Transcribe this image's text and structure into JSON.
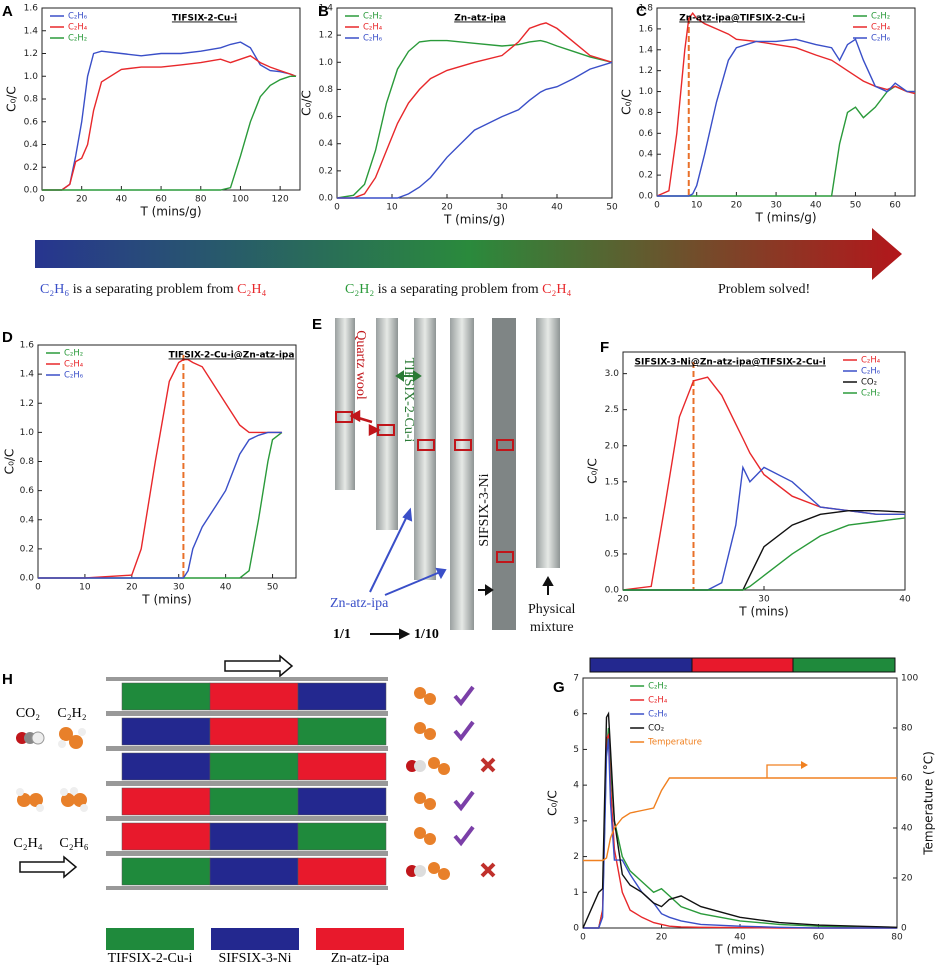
{
  "panel_labels": [
    "A",
    "B",
    "C",
    "D",
    "E",
    "F",
    "G",
    "H"
  ],
  "banner": {
    "caption_1": [
      "C₂H₆",
      "is a  separating problem from",
      "C₂H₄"
    ],
    "caption_2": [
      "C₂H₂",
      "is a separating problem from",
      "C₂H₄"
    ],
    "caption_3": "Problem solved!"
  },
  "panel_e": {
    "quartz": "Quartz wool",
    "tifsix": "TIFSIX-2-Cu-i",
    "sifsix": "SIFSIX-3-Ni",
    "zn": "Zn-atz-ipa",
    "physical": [
      "Physical",
      "mixture"
    ],
    "ratio_start": "1/1",
    "ratio_end": "1/10"
  },
  "panel_h": {
    "molecules": [
      "CO₂",
      "C₂H₂",
      "C₂H₄",
      "C₂H₆"
    ],
    "legend": [
      {
        "name": "TIFSIX-2-Cu-i",
        "color": "#1f8a3c"
      },
      {
        "name": "SIFSIX-3-Ni",
        "color": "#23288f"
      },
      {
        "name": "Zn-atz-ipa",
        "color": "#e8192c"
      }
    ]
  },
  "chart_data": [
    {
      "type": "line",
      "title": "TIFSIX-2-Cu-i",
      "xlabel": "T (mins/g)",
      "ylabel": "C₀/C",
      "legend": "upper left",
      "xlim": [
        0,
        130
      ],
      "xticks": [
        0,
        20,
        40,
        60,
        80,
        100,
        120
      ],
      "ylim": [
        0,
        1.6
      ],
      "yticks": [
        {
          "value": 0,
          "label": "0.0"
        },
        0.2,
        0.4,
        0.6,
        0.8,
        {
          "value": 1,
          "label": "1.0"
        },
        1.2,
        1.4,
        1.6
      ],
      "x": [
        0,
        10,
        14,
        17,
        20,
        23,
        26,
        30,
        40,
        50,
        60,
        70,
        80,
        90,
        95,
        100,
        105,
        110,
        115,
        120,
        125,
        128
      ],
      "series": [
        {
          "name": "C₂H₆",
          "color": "#3a4fc8",
          "values": [
            0,
            0,
            0.05,
            0.3,
            0.6,
            1.0,
            1.2,
            1.22,
            1.2,
            1.18,
            1.2,
            1.2,
            1.22,
            1.25,
            1.28,
            1.3,
            1.25,
            1.1,
            1.05,
            1.04,
            1.02,
            1.0
          ]
        },
        {
          "name": "C₂H₄",
          "color": "#e8282b",
          "values": [
            0,
            0,
            0.05,
            0.25,
            0.28,
            0.4,
            0.7,
            0.95,
            1.06,
            1.08,
            1.08,
            1.1,
            1.12,
            1.15,
            1.12,
            1.15,
            1.18,
            1.12,
            1.08,
            1.05,
            1.02,
            1.0
          ]
        },
        {
          "name": "C₂H₂",
          "color": "#2a9a3a",
          "values": [
            0,
            0,
            0,
            0,
            0,
            0,
            0,
            0,
            0,
            0,
            0,
            0,
            0,
            0,
            0.02,
            0.3,
            0.6,
            0.82,
            0.92,
            0.97,
            1.0,
            1.0
          ]
        }
      ]
    },
    {
      "type": "line",
      "title": "Zn-atz-ipa",
      "xlabel": "T (mins/g)",
      "ylabel": "C₀/C",
      "legend": "upper left",
      "xlim": [
        0,
        50
      ],
      "xticks": [
        0,
        10,
        20,
        30,
        40,
        50
      ],
      "ylim": [
        0,
        1.4
      ],
      "yticks": [
        {
          "value": 0,
          "label": "0.0"
        },
        0.2,
        0.4,
        0.6,
        0.8,
        {
          "value": 1,
          "label": "1.0"
        },
        1.2,
        1.4
      ],
      "x": [
        0,
        3,
        5,
        7,
        9,
        11,
        13,
        15,
        17,
        20,
        25,
        30,
        33,
        35,
        37,
        38,
        40,
        43,
        46,
        50
      ],
      "series": [
        {
          "name": "C₂H₂",
          "color": "#2a9a3a",
          "values": [
            0,
            0.02,
            0.1,
            0.35,
            0.7,
            0.95,
            1.08,
            1.15,
            1.16,
            1.16,
            1.14,
            1.12,
            1.13,
            1.15,
            1.16,
            1.15,
            1.12,
            1.08,
            1.04,
            1.0
          ]
        },
        {
          "name": "C₂H₄",
          "color": "#e8282b",
          "values": [
            0,
            0,
            0.03,
            0.15,
            0.35,
            0.55,
            0.7,
            0.8,
            0.88,
            0.94,
            1.0,
            1.05,
            1.15,
            1.25,
            1.28,
            1.29,
            1.25,
            1.15,
            1.05,
            1.0
          ]
        },
        {
          "name": "C₂H₆",
          "color": "#3a4fc8",
          "values": [
            0,
            0,
            0,
            0,
            0,
            0,
            0.03,
            0.08,
            0.15,
            0.3,
            0.5,
            0.6,
            0.65,
            0.72,
            0.78,
            0.8,
            0.82,
            0.88,
            0.95,
            1.0
          ]
        }
      ]
    },
    {
      "type": "line",
      "title": "Zn-atz-ipa@TIFSIX-2-Cu-i",
      "xlabel": "T (mins/g)",
      "ylabel": "C₀/C",
      "legend": "upper right",
      "vline": 8,
      "xlim": [
        0,
        65
      ],
      "xticks": [
        0,
        10,
        20,
        30,
        40,
        50,
        60
      ],
      "ylim": [
        0,
        1.8
      ],
      "yticks": [
        {
          "value": 0,
          "label": "0.0"
        },
        0.2,
        0.4,
        0.6,
        0.8,
        {
          "value": 1,
          "label": "1.0"
        },
        1.2,
        1.4,
        1.6,
        1.8
      ],
      "x": [
        0,
        3,
        5,
        7,
        8,
        9,
        10,
        12,
        15,
        18,
        20,
        25,
        30,
        35,
        40,
        44,
        46,
        48,
        50,
        52,
        55,
        58,
        60,
        63,
        65
      ],
      "series": [
        {
          "name": "C₂H₂",
          "color": "#2a9a3a",
          "values": [
            0,
            0,
            0,
            0,
            0,
            0,
            0,
            0,
            0,
            0,
            0,
            0,
            0,
            0,
            0,
            0,
            0.5,
            0.8,
            0.85,
            0.75,
            0.85,
            1.0,
            1.05,
            1.0,
            1.0
          ]
        },
        {
          "name": "C₂H₄",
          "color": "#e8282b",
          "values": [
            0,
            0.05,
            0.6,
            1.4,
            1.7,
            1.75,
            1.7,
            1.65,
            1.6,
            1.55,
            1.5,
            1.48,
            1.45,
            1.42,
            1.35,
            1.3,
            1.25,
            1.2,
            1.15,
            1.1,
            1.05,
            1.02,
            1.05,
            1.0,
            0.98
          ]
        },
        {
          "name": "C₂H₆",
          "color": "#3a4fc8",
          "values": [
            0,
            0,
            0,
            0,
            0,
            0.02,
            0.1,
            0.4,
            0.9,
            1.3,
            1.42,
            1.48,
            1.48,
            1.5,
            1.45,
            1.42,
            1.3,
            1.45,
            1.5,
            1.3,
            1.05,
            1.0,
            1.08,
            1.0,
            1.0
          ]
        }
      ]
    },
    {
      "type": "line",
      "title": "TIFSIX-2-Cu-i@Zn-atz-ipa",
      "xlabel": "T (mins)",
      "ylabel": "C₀/C",
      "legend": "upper left",
      "vline": 31,
      "xlim": [
        0,
        55
      ],
      "xticks": [
        0,
        10,
        20,
        30,
        40,
        50
      ],
      "ylim": [
        0,
        1.6
      ],
      "yticks": [
        {
          "value": 0,
          "label": "0.0"
        },
        0.2,
        0.4,
        0.6,
        0.8,
        {
          "value": 1,
          "label": "1.0"
        },
        1.2,
        1.4,
        1.6
      ],
      "x": [
        0,
        10,
        20,
        22,
        25,
        28,
        30,
        31,
        32,
        33,
        35,
        38,
        40,
        43,
        45,
        47,
        49,
        50,
        52
      ],
      "series": [
        {
          "name": "C₂H₂",
          "color": "#2a9a3a",
          "values": [
            0,
            0,
            0,
            0,
            0,
            0,
            0,
            0,
            0,
            0,
            0,
            0,
            0,
            0,
            0.05,
            0.4,
            0.8,
            0.95,
            1.0
          ]
        },
        {
          "name": "C₂H₄",
          "color": "#e8282b",
          "values": [
            0,
            0,
            0.02,
            0.2,
            0.8,
            1.35,
            1.48,
            1.5,
            1.5,
            1.48,
            1.45,
            1.3,
            1.2,
            1.05,
            1.0,
            1.0,
            1.0,
            1.0,
            1.0
          ]
        },
        {
          "name": "C₂H₆",
          "color": "#3a4fc8",
          "values": [
            0,
            0,
            0,
            0,
            0,
            0,
            0,
            0,
            0.05,
            0.2,
            0.35,
            0.5,
            0.6,
            0.85,
            0.95,
            0.98,
            1.0,
            1.0,
            1.0
          ]
        }
      ]
    },
    {
      "type": "line",
      "title": "SIFSIX-3-Ni@Zn-atz-ipa@TIFSIX-2-Cu-i",
      "xlabel": "T (mins)",
      "ylabel": "C₀/C",
      "legend": "upper right",
      "vline": 25,
      "xlim": [
        20,
        40
      ],
      "xticks": [
        20,
        30,
        40
      ],
      "ylim": [
        0,
        3.3
      ],
      "yticks": [
        {
          "value": 0,
          "label": "0.0"
        },
        0.5,
        {
          "value": 1,
          "label": "1.0"
        },
        1.5,
        {
          "value": 2,
          "label": "2.0"
        },
        2.5,
        {
          "value": 3,
          "label": "3.0"
        }
      ],
      "x": [
        20,
        22,
        23,
        24,
        25,
        26,
        27,
        28,
        28.5,
        29,
        30,
        32,
        34,
        36,
        38,
        40
      ],
      "series": [
        {
          "name": "C₂H₄",
          "color": "#e8282b",
          "values": [
            0,
            0.05,
            1.2,
            2.4,
            2.9,
            2.95,
            2.7,
            2.3,
            2.1,
            1.9,
            1.6,
            1.3,
            1.15,
            1.1,
            1.05,
            1.05
          ]
        },
        {
          "name": "C₂H₆",
          "color": "#3a4fc8",
          "values": [
            0,
            0,
            0,
            0,
            0,
            0,
            0.1,
            0.9,
            1.7,
            1.5,
            1.7,
            1.5,
            1.15,
            1.1,
            1.05,
            1.05
          ]
        },
        {
          "name": "CO₂",
          "color": "#111111",
          "values": [
            0,
            0,
            0,
            0,
            0,
            0,
            0,
            0,
            0,
            0.2,
            0.6,
            0.9,
            1.05,
            1.1,
            1.1,
            1.08
          ]
        },
        {
          "name": "C₂H₂",
          "color": "#2a9a3a",
          "values": [
            0,
            0,
            0,
            0,
            0,
            0,
            0,
            0,
            0,
            0.05,
            0.2,
            0.5,
            0.75,
            0.9,
            0.95,
            1.0
          ]
        }
      ]
    },
    {
      "type": "line",
      "xlabel": "T (mins)",
      "ylabel": "C₀/C",
      "y2label": "Temperature (°C)",
      "legend": "upper center",
      "xlim": [
        0,
        80
      ],
      "xticks": [
        0,
        20,
        40,
        60,
        80
      ],
      "ylim": [
        0,
        7
      ],
      "yticks": [
        0,
        1,
        2,
        3,
        4,
        5,
        6,
        7
      ],
      "y2lim": [
        0,
        100
      ],
      "y2ticks": [
        0,
        20,
        40,
        60,
        80,
        100
      ],
      "x": [
        0,
        4,
        5,
        6,
        6.5,
        7,
        8,
        10,
        12,
        15,
        18,
        20,
        22,
        25,
        30,
        40,
        50,
        60,
        70,
        80
      ],
      "series": [
        {
          "name": "C₂H₂",
          "color": "#2a9a3a",
          "values": [
            0,
            0,
            0.5,
            5.0,
            5.6,
            4.5,
            3.0,
            2.0,
            1.6,
            1.3,
            1.0,
            1.1,
            0.9,
            0.6,
            0.4,
            0.2,
            0.1,
            0.05,
            0.02,
            0
          ]
        },
        {
          "name": "C₂H₄",
          "color": "#e8282b",
          "values": [
            0,
            0,
            0.5,
            5.3,
            5.4,
            4.0,
            2.2,
            1.0,
            0.5,
            0.3,
            0.15,
            0.1,
            0.05,
            0.03,
            0.02,
            0.01,
            0,
            0,
            0,
            0
          ]
        },
        {
          "name": "C₂H₆",
          "color": "#3a4fc8",
          "values": [
            0,
            0,
            0.3,
            4.8,
            5.3,
            3.5,
            1.9,
            1.9,
            1.5,
            1.0,
            0.7,
            0.4,
            0.3,
            0.2,
            0.1,
            0.05,
            0.02,
            0,
            0,
            0
          ]
        },
        {
          "name": "CO₂",
          "color": "#111111",
          "values": [
            0,
            1.0,
            1.1,
            5.9,
            6.0,
            5.0,
            3.0,
            1.5,
            1.2,
            1.0,
            0.7,
            0.6,
            0.8,
            0.9,
            0.6,
            0.3,
            0.15,
            0.08,
            0.05,
            0.02
          ]
        },
        {
          "name": "Temperature",
          "color": "#f08020",
          "axis": "y2",
          "values": [
            27,
            27,
            27,
            28,
            32,
            36,
            40,
            44,
            46,
            47,
            48,
            55,
            60,
            60,
            60,
            60,
            60,
            60,
            60,
            60
          ]
        }
      ]
    }
  ]
}
